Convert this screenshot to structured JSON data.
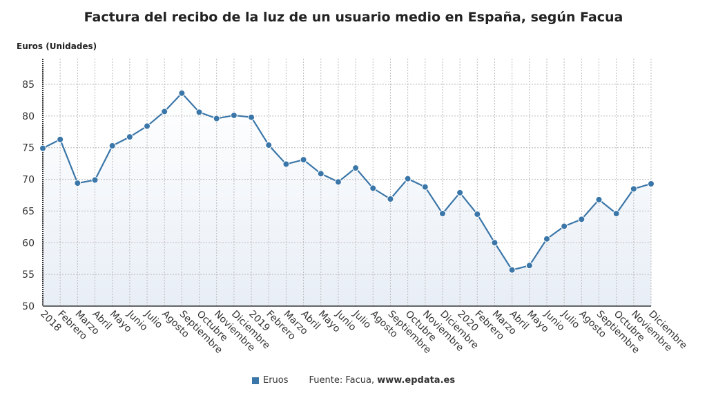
{
  "chart_data": {
    "type": "line",
    "title": "Factura del recibo de la luz de un usuario medio en España, según Facua",
    "ylabel": "Euros (Unidades)",
    "xlabel": "",
    "ylim": [
      50,
      89
    ],
    "yticks": [
      50,
      55,
      60,
      65,
      70,
      75,
      80,
      85
    ],
    "grid": true,
    "legend_position": "bottom",
    "categories": [
      "2018",
      "Febrero",
      "Marzo",
      "Abril",
      "Mayo",
      "Junio",
      "Julio",
      "Agosto",
      "Septiembre",
      "Octubre",
      "Noviembre",
      "Diciembre",
      "2019",
      "Febrero",
      "Marzo",
      "Abril",
      "Mayo",
      "Junio",
      "Julio",
      "Agosto",
      "Septiembre",
      "Octubre",
      "Noviembre",
      "Diciembre",
      "2020",
      "Febrero",
      "Marzo",
      "Abril",
      "Mayo",
      "Junio",
      "Julio",
      "Agosto",
      "Septiembre",
      "Octubre",
      "Noviembre",
      "Diciembre"
    ],
    "series": [
      {
        "name": "Eruos",
        "color": "#3a76a8",
        "values": [
          74.9,
          76.3,
          69.4,
          69.9,
          75.3,
          76.7,
          78.4,
          80.7,
          83.6,
          80.6,
          79.6,
          80.1,
          79.8,
          75.4,
          72.4,
          73.1,
          70.9,
          69.6,
          71.8,
          68.6,
          66.9,
          70.1,
          68.8,
          64.6,
          67.9,
          64.5,
          60.0,
          55.7,
          56.4,
          60.6,
          62.6,
          63.7,
          66.8,
          64.6,
          68.5,
          69.3
        ]
      }
    ],
    "source_prefix": "Fuente: Facua, ",
    "source_url": "www.epdata.es"
  }
}
